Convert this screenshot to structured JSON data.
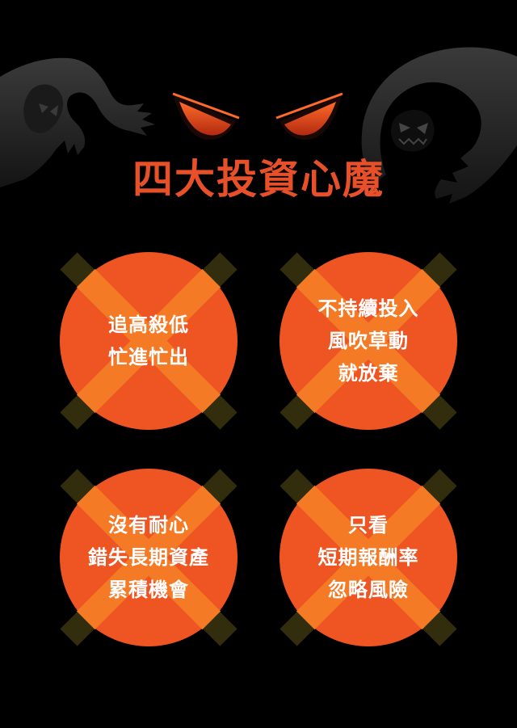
{
  "title": "四大投資心魔",
  "colors": {
    "background": "#000000",
    "accent": "#e8502a",
    "circle": "#ee5522",
    "cross": "#f47a26",
    "tape": "#3a3510",
    "monster": "#2d2d2d"
  },
  "icons": [
    "monster-left-icon",
    "monster-right-icon",
    "angry-eyes-icon",
    "cross-icon"
  ],
  "cards": [
    {
      "lines": [
        "追高殺低",
        "忙進忙出"
      ]
    },
    {
      "lines": [
        "不持續投入",
        "風吹草動",
        "就放棄"
      ]
    },
    {
      "lines": [
        "沒有耐心",
        "錯失長期資產",
        "累積機會"
      ]
    },
    {
      "lines": [
        "只看",
        "短期報酬率",
        "忽略風險"
      ]
    }
  ]
}
